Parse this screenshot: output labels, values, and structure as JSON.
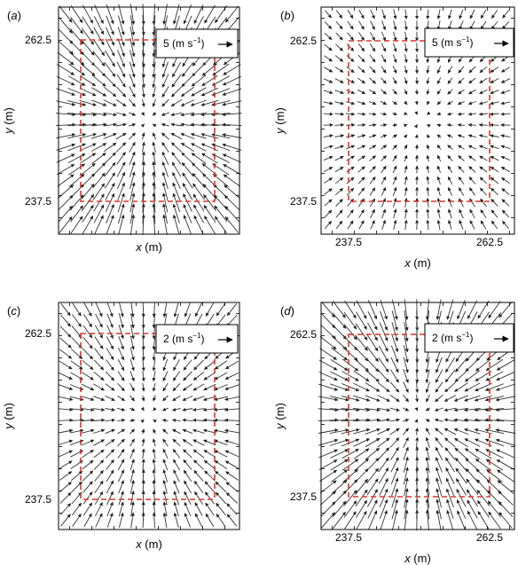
{
  "figure": {
    "panels": [
      {
        "id": "a",
        "label": "(a)",
        "xlabel": "x (m)",
        "ylabel": "y (m)",
        "xticks": [],
        "yticks": [
          "262.5",
          "237.5"
        ],
        "legend": {
          "magnitude": "5",
          "unit": "(m s",
          "exponent": "−1",
          "close": ")"
        },
        "field": {
          "center": [
            250,
            250
          ],
          "pattern": "convergent toward center",
          "scale": "large"
        },
        "dashed_region": {
          "color": "#e0312b",
          "x_range": [
            237.5,
            262.5
          ],
          "y_range": [
            237.5,
            262.5
          ]
        }
      },
      {
        "id": "b",
        "label": "(b)",
        "xlabel": "x (m)",
        "ylabel": "y (m)",
        "xticks": [
          "237.5",
          "262.5"
        ],
        "yticks": [
          "262.5",
          "237.5"
        ],
        "legend": {
          "magnitude": "5",
          "unit": "(m s",
          "exponent": "−1",
          "close": ")"
        },
        "field": {
          "center": [
            250,
            250
          ],
          "pattern": "convergent toward center",
          "scale": "small"
        },
        "dashed_region": {
          "color": "#e0312b",
          "x_range": [
            237.5,
            262.5
          ],
          "y_range": [
            237.5,
            262.5
          ]
        }
      },
      {
        "id": "c",
        "label": "(c)",
        "xlabel": "x (m)",
        "ylabel": "y (m)",
        "xticks": [],
        "yticks": [
          "262.5",
          "237.5"
        ],
        "legend": {
          "magnitude": "2",
          "unit": "(m s",
          "exponent": "−1",
          "close": ")"
        },
        "field": {
          "center": [
            250,
            250
          ],
          "pattern": "convergent toward center",
          "scale": "medium"
        },
        "dashed_region": {
          "color": "#e0312b",
          "x_range": [
            237.5,
            262.5
          ],
          "y_range": [
            237.5,
            262.5
          ]
        }
      },
      {
        "id": "d",
        "label": "(d)",
        "xlabel": "x (m)",
        "ylabel": "y (m)",
        "xticks": [
          "237.5",
          "262.5"
        ],
        "yticks": [
          "262.5",
          "237.5"
        ],
        "legend": {
          "magnitude": "2",
          "unit": "(m s",
          "exponent": "−1",
          "close": ")"
        },
        "field": {
          "center": [
            250,
            250
          ],
          "pattern": "convergent toward center",
          "scale": "large"
        },
        "dashed_region": {
          "color": "#e0312b",
          "x_range": [
            237.5,
            262.5
          ],
          "y_range": [
            237.5,
            262.5
          ]
        }
      }
    ]
  }
}
